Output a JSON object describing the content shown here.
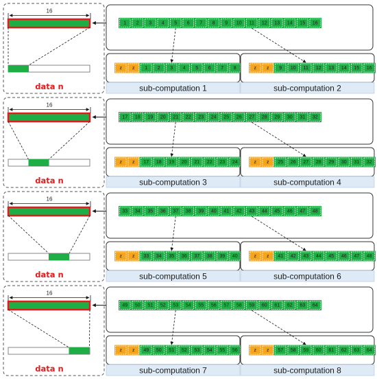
{
  "colors": {
    "green": "#1fae45",
    "orange": "#f5a51b",
    "highlight_border": "#e21b1b",
    "label_band": "#deebf7",
    "data_label": "#e21b1b"
  },
  "blocks": [
    {
      "dimension": "16",
      "data_label": "data n",
      "sequence": [
        "1",
        "2",
        "3",
        "4",
        "5",
        "6",
        "7",
        "8",
        "9",
        "10",
        "11",
        "12",
        "13",
        "14",
        "15",
        "16"
      ],
      "sub_left": {
        "cells": [
          "z",
          "z",
          "1",
          "2",
          "3",
          "4",
          "5",
          "6",
          "7",
          "8"
        ],
        "label": "sub-computation 1"
      },
      "sub_right": {
        "cells": [
          "z",
          "z",
          "9",
          "10",
          "11",
          "12",
          "13",
          "14",
          "15",
          "16"
        ],
        "label": "sub-computation 2"
      }
    },
    {
      "dimension": "16",
      "data_label": "data n",
      "sequence": [
        "17",
        "18",
        "19",
        "20",
        "21",
        "22",
        "23",
        "24",
        "25",
        "26",
        "27",
        "28",
        "29",
        "30",
        "31",
        "32"
      ],
      "sub_left": {
        "cells": [
          "z",
          "z",
          "17",
          "18",
          "19",
          "20",
          "21",
          "22",
          "23",
          "24"
        ],
        "label": "sub-computation 3"
      },
      "sub_right": {
        "cells": [
          "z",
          "z",
          "25",
          "26",
          "27",
          "28",
          "29",
          "30",
          "31",
          "32"
        ],
        "label": "sub-computation 4"
      }
    },
    {
      "dimension": "16",
      "data_label": "data n",
      "sequence": [
        "33",
        "34",
        "35",
        "36",
        "37",
        "38",
        "39",
        "40",
        "41",
        "42",
        "43",
        "44",
        "45",
        "46",
        "47",
        "48"
      ],
      "sub_left": {
        "cells": [
          "z",
          "z",
          "33",
          "34",
          "35",
          "36",
          "37",
          "38",
          "39",
          "40"
        ],
        "label": "sub-computation 5"
      },
      "sub_right": {
        "cells": [
          "z",
          "z",
          "41",
          "42",
          "43",
          "44",
          "45",
          "46",
          "47",
          "48"
        ],
        "label": "sub-computation 6"
      }
    },
    {
      "dimension": "16",
      "data_label": "data n",
      "sequence": [
        "49",
        "50",
        "51",
        "52",
        "53",
        "54",
        "55",
        "56",
        "57",
        "58",
        "59",
        "60",
        "61",
        "62",
        "63",
        "64"
      ],
      "sub_left": {
        "cells": [
          "z",
          "z",
          "49",
          "50",
          "51",
          "52",
          "53",
          "54",
          "55",
          "56"
        ],
        "label": "sub-computation 7"
      },
      "sub_right": {
        "cells": [
          "z",
          "z",
          "57",
          "58",
          "59",
          "60",
          "61",
          "62",
          "63",
          "64"
        ],
        "label": "sub-computation 8"
      }
    }
  ]
}
